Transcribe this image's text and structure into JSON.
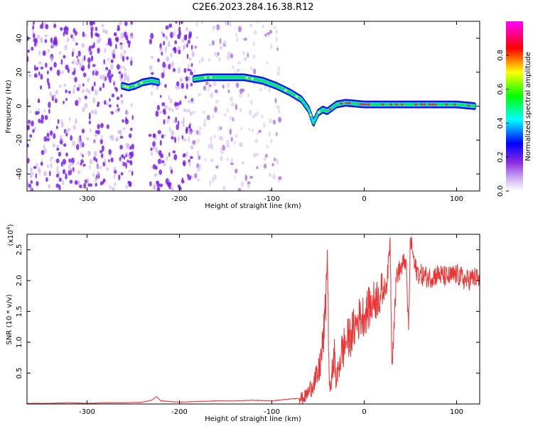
{
  "title": "C2E6.2023.284.16.38.R12",
  "chart_data": [
    {
      "type": "heatmap",
      "panel": "spectrogram",
      "xlabel": "Height of straight line (km)",
      "ylabel": "Frequency (Hz)",
      "xlim": [
        -365,
        125
      ],
      "ylim": [
        -50,
        50
      ],
      "xticks": [
        -300,
        -200,
        -100,
        0,
        100
      ],
      "xtick_labels": [
        "-300",
        "-200",
        "-100",
        "0",
        "100"
      ],
      "yticks": [
        40,
        20,
        0,
        -20,
        -40
      ],
      "ytick_labels": [
        "40",
        "20",
        "0",
        "-20",
        "-40"
      ],
      "colorbar": {
        "label": "Normalized spectral amplitude",
        "range": [
          0.0,
          1.0
        ],
        "ticks": [
          0.0,
          0.2,
          0.4,
          0.6,
          0.8
        ],
        "tick_labels": [
          "0.0",
          "0.2",
          "0.4",
          "0.6",
          "0.8"
        ],
        "colormap": [
          "#ffffff",
          "#8a2be2",
          "#0000ff",
          "#00ffff",
          "#00ff00",
          "#ffff00",
          "#ff0000",
          "#ff00ff"
        ]
      },
      "trace": {
        "x": [
          -262,
          -255,
          -248,
          -240,
          -230,
          -222,
          -185,
          -170,
          -150,
          -130,
          -110,
          -95,
          -80,
          -68,
          -60,
          -55,
          -50,
          -45,
          -40,
          -30,
          -20,
          0,
          20,
          40,
          60,
          80,
          100,
          120
        ],
        "frequency": [
          12,
          11,
          12,
          14,
          15,
          14,
          16,
          17,
          17,
          17,
          15,
          12,
          8,
          4,
          -2,
          -10,
          -4,
          -2,
          -3,
          1,
          2,
          1,
          1,
          1,
          1,
          1,
          1,
          0
        ]
      },
      "noise_regions": [
        [
          -365,
          -250
        ],
        [
          -232,
          -185
        ],
        [
          -185,
          -90
        ]
      ],
      "grid": false,
      "legend": "none"
    },
    {
      "type": "line",
      "panel": "snr",
      "xlabel": "Height of straight line (km)",
      "ylabel": "SNR (10 * v/v)",
      "y_multiplier": "(x10^4)",
      "y_multiplier_base": "(x10",
      "y_multiplier_exp": "4",
      "y_multiplier_close": ")",
      "xlim": [
        -365,
        125
      ],
      "ylim": [
        0,
        2.75
      ],
      "xticks": [
        -300,
        -200,
        -100,
        0,
        100
      ],
      "xtick_labels": [
        "-300",
        "-200",
        "-100",
        "0",
        "100"
      ],
      "yticks": [
        0.5,
        1.0,
        1.5,
        2.0,
        2.5
      ],
      "ytick_labels": [
        "0.5",
        "1.0",
        "1.5",
        "2.0",
        "2.5"
      ],
      "color": "#ee3333",
      "series": [
        {
          "x": [
            -365,
            -340,
            -320,
            -300,
            -280,
            -260,
            -240,
            -230,
            -225,
            -220,
            -210,
            -200,
            -180,
            -160,
            -140,
            -120,
            -100,
            -80,
            -65,
            -60,
            -55,
            -50,
            -45,
            -42,
            -40,
            -38,
            -37,
            -35,
            -33,
            -30,
            -28,
            -25,
            -20,
            -15,
            -10,
            -5,
            0,
            5,
            10,
            15,
            20,
            25,
            28,
            30,
            35,
            40,
            45,
            48,
            50,
            55,
            60,
            70,
            80,
            90,
            100,
            110,
            120,
            125
          ],
          "y": [
            0.01,
            0.01,
            0.02,
            0.01,
            0.02,
            0.02,
            0.03,
            0.06,
            0.12,
            0.05,
            0.04,
            0.03,
            0.04,
            0.05,
            0.05,
            0.06,
            0.05,
            0.08,
            0.1,
            0.2,
            0.35,
            0.45,
            0.9,
            1.5,
            2.5,
            0.5,
            0.2,
            0.4,
            0.9,
            0.3,
            0.6,
            0.8,
            1.0,
            1.1,
            1.25,
            1.4,
            1.45,
            1.55,
            1.65,
            1.75,
            1.8,
            2.0,
            2.7,
            0.65,
            2.1,
            2.2,
            2.35,
            1.2,
            2.7,
            2.2,
            2.1,
            2.05,
            2.1,
            2.05,
            2.1,
            2.0,
            2.05,
            2.0
          ]
        }
      ],
      "grid": false,
      "legend": "none"
    }
  ]
}
